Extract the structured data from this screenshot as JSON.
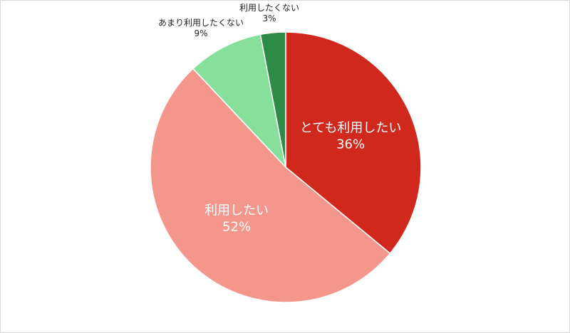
{
  "chart_data": {
    "type": "pie",
    "categories": [
      "とても利用したい",
      "利用したい",
      "あまり利用したくない",
      "利用したくない"
    ],
    "values": [
      36,
      52,
      9,
      3
    ],
    "value_labels": [
      "36%",
      "52%",
      "9%",
      "3%"
    ],
    "colors": [
      "#d0281c",
      "#f4968c",
      "#86e09c",
      "#2e8b47"
    ]
  }
}
